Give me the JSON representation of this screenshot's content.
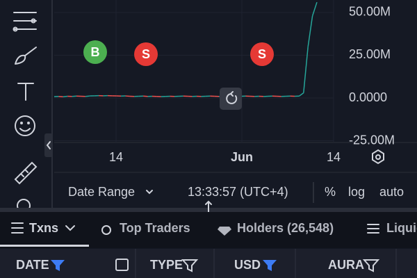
{
  "chart": {
    "ylim": [
      -26000000,
      57300000
    ],
    "yticks": [
      {
        "value": 50000000,
        "label": "50.00M"
      },
      {
        "value": 25000000,
        "label": "25.00M"
      },
      {
        "value": 0,
        "label": "0.0000"
      },
      {
        "value": -25000000,
        "label": "-25.00M"
      }
    ],
    "xlabels": [
      "14",
      "Jun",
      "14"
    ],
    "markers": [
      {
        "label": "B",
        "color": "#4caf50"
      },
      {
        "label": "S",
        "color": "#e53935"
      },
      {
        "label": "S",
        "color": "#e53935"
      }
    ],
    "values": [
      800000,
      900000,
      700000,
      1000000,
      900000,
      1100000,
      1000000,
      900000,
      1200000,
      1300000,
      1400000,
      1300000,
      1400000,
      1300000,
      1200000,
      1100000,
      1200000,
      1000000,
      900000,
      1000000,
      1100000,
      900000,
      1000000,
      900000,
      800000,
      900000,
      1000000,
      900000,
      1000000,
      1100000,
      1000000,
      900000,
      1000000,
      900000,
      1000000,
      1100000,
      1000000,
      900000,
      1000000,
      900000,
      1000000,
      900000,
      1000000,
      1100000,
      1000000,
      900000,
      1000000,
      900000,
      1000000,
      1100000,
      1000000,
      900000,
      1000000,
      1100000,
      1000000,
      1100000,
      3000000,
      30000000,
      48000000,
      56000000
    ]
  },
  "controls": {
    "date_range": "Date Range",
    "time": "13:33:57 (UTC+4)",
    "percent": "%",
    "log": "log",
    "auto": "auto"
  },
  "tabs": [
    "Txns",
    "Top Traders",
    "Holders (26,548)",
    "Liquidity"
  ],
  "table": {
    "headers": [
      "DATE",
      "TYPE",
      "USD",
      "AURA"
    ]
  }
}
